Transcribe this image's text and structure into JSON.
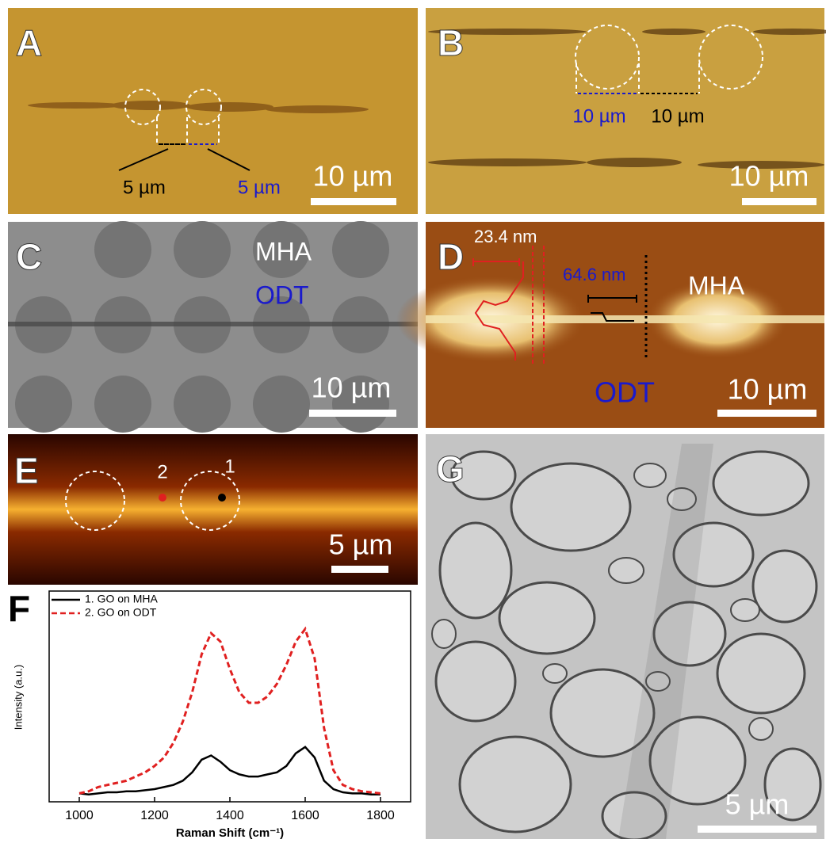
{
  "panels": {
    "a": {
      "label": "A",
      "gap_label": "5 µm",
      "diameter_label": "5 µm",
      "scale_bar": "10 µm"
    },
    "b": {
      "label": "B",
      "diameter_label": "10 µm",
      "gap_label": "10 µm",
      "scale_bar": "10 µm"
    },
    "c": {
      "label": "C",
      "region_1": "MHA",
      "region_2": "ODT",
      "scale_bar": "10 µm"
    },
    "d": {
      "label": "D",
      "height_1": "23.4 nm",
      "height_2": "64.6 nm",
      "region_1": "MHA",
      "region_2": "ODT",
      "scale_bar": "10 µm"
    },
    "e": {
      "label": "E",
      "point_2": "2",
      "point_1": "1",
      "scale_bar": "5 µm"
    },
    "f": {
      "label": "F"
    },
    "g": {
      "label": "G",
      "scale_bar": "5 µm"
    }
  },
  "chart_data": {
    "type": "line",
    "xlabel": "Raman Shift (cm⁻¹)",
    "ylabel": "Intensity (a.u.)",
    "x": [
      1000,
      1025,
      1050,
      1075,
      1100,
      1125,
      1150,
      1175,
      1200,
      1225,
      1250,
      1275,
      1300,
      1325,
      1350,
      1375,
      1400,
      1425,
      1450,
      1475,
      1500,
      1525,
      1550,
      1575,
      1600,
      1625,
      1650,
      1675,
      1700,
      1725,
      1750,
      1775,
      1800
    ],
    "series": [
      {
        "name": "1. GO on MHA",
        "color": "#000000",
        "linestyle": "solid",
        "values": [
          0.4,
          0.35,
          0.4,
          0.45,
          0.45,
          0.5,
          0.5,
          0.55,
          0.6,
          0.7,
          0.8,
          1.0,
          1.4,
          2.0,
          2.2,
          1.9,
          1.5,
          1.3,
          1.2,
          1.2,
          1.3,
          1.4,
          1.7,
          2.3,
          2.6,
          2.1,
          1.0,
          0.6,
          0.45,
          0.4,
          0.4,
          0.35,
          0.35
        ]
      },
      {
        "name": "2. GO on ODT",
        "color": "#e02020",
        "linestyle": "dashed",
        "values": [
          0.4,
          0.5,
          0.7,
          0.8,
          0.9,
          1.0,
          1.2,
          1.4,
          1.7,
          2.1,
          2.8,
          3.8,
          5.2,
          7.0,
          8.0,
          7.6,
          6.3,
          5.2,
          4.7,
          4.7,
          5.0,
          5.6,
          6.5,
          7.6,
          8.2,
          6.8,
          3.5,
          1.5,
          0.8,
          0.6,
          0.5,
          0.45,
          0.4
        ]
      }
    ],
    "xlim": [
      920,
      1880
    ],
    "ylim": [
      0,
      10
    ],
    "xticks": [
      1000,
      1200,
      1400,
      1600,
      1800
    ],
    "legend": "upper left"
  }
}
